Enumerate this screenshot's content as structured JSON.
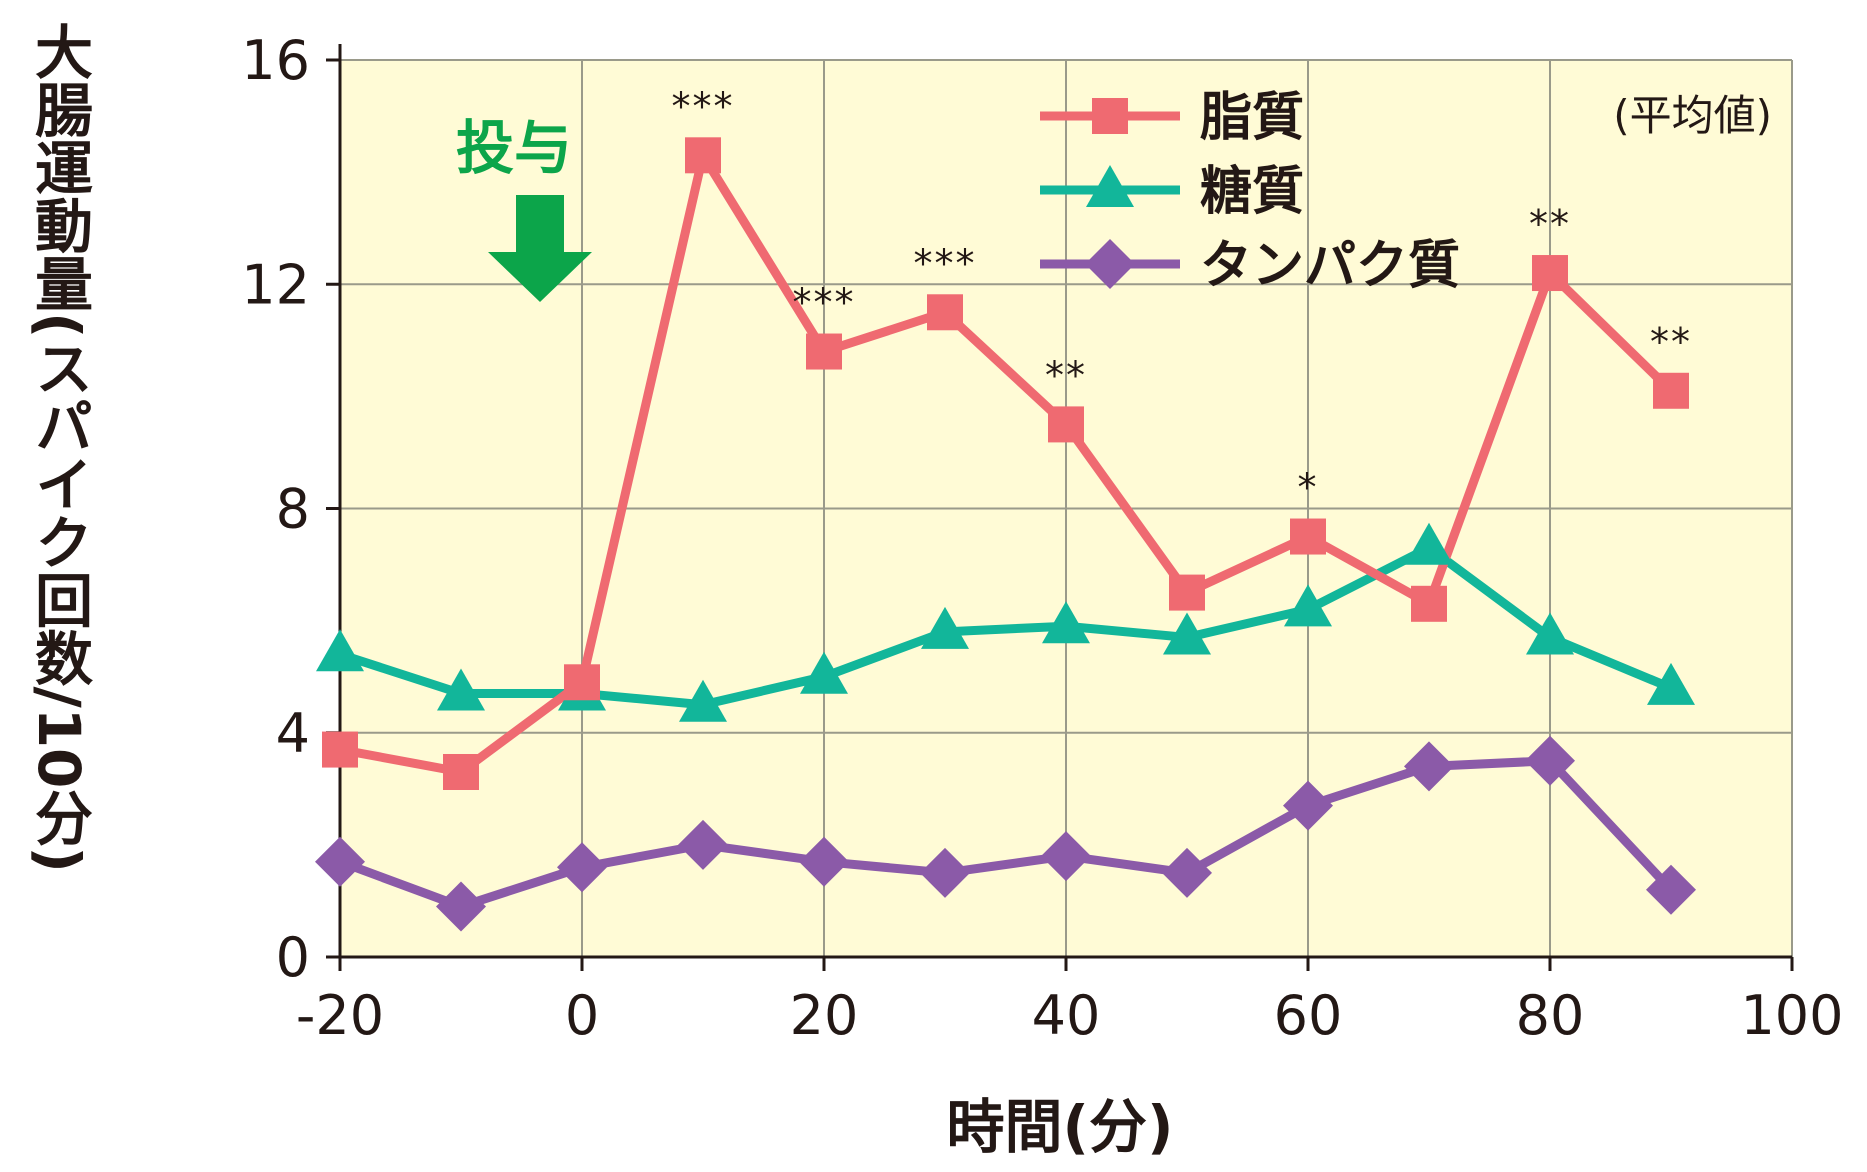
{
  "colors": {
    "plot_bg": "#fffbd6",
    "grid": "#9a9a8a",
    "axis": "#231815",
    "arrow": "#0ca54a"
  },
  "y_axis_title": "大腸運動量(スパイク回数/10分)",
  "x_axis_title": "時間(分)",
  "legend_note": "(平均値)",
  "dose_label": "投与",
  "chart_data": {
    "type": "line",
    "title": "",
    "xlabel": "時間(分)",
    "ylabel": "大腸運動量(スパイク回数/10分)",
    "xlim": [
      -20,
      100
    ],
    "ylim": [
      0,
      16
    ],
    "x_ticks": [
      -20,
      0,
      20,
      40,
      60,
      80,
      100
    ],
    "x_tick_labels": [
      "-20",
      "0",
      "20",
      "40",
      "60",
      "80",
      "100"
    ],
    "y_ticks": [
      0,
      4,
      8,
      12,
      16
    ],
    "y_tick_labels": [
      "0",
      "4",
      "8",
      "12",
      "16"
    ],
    "grid": true,
    "legend_position": "top-right",
    "note": "(平均値)",
    "dose_time": 0,
    "dose_label": "投与",
    "x": [
      -20,
      -10,
      0,
      10,
      20,
      30,
      40,
      50,
      60,
      70,
      80,
      90
    ],
    "series": [
      {
        "name": "脂質",
        "color": "#ef6a71",
        "marker": "square",
        "values": [
          3.7,
          3.3,
          4.9,
          14.3,
          10.8,
          11.5,
          9.5,
          6.5,
          7.5,
          6.3,
          12.2,
          10.1
        ]
      },
      {
        "name": "糖質",
        "color": "#12b69a",
        "marker": "triangle",
        "values": [
          5.4,
          4.7,
          4.7,
          4.5,
          5.0,
          5.8,
          5.9,
          5.7,
          6.2,
          7.3,
          5.7,
          4.8
        ]
      },
      {
        "name": "タンパク質",
        "color": "#8b5aa8",
        "marker": "diamond",
        "values": [
          1.7,
          0.9,
          1.6,
          2.0,
          1.7,
          1.5,
          1.8,
          1.5,
          2.7,
          3.4,
          3.5,
          1.2
        ]
      }
    ],
    "annotations": [
      {
        "x": 10,
        "y": 14.3,
        "text": "***"
      },
      {
        "x": 20,
        "y": 10.8,
        "text": "***"
      },
      {
        "x": 30,
        "y": 11.5,
        "text": "***"
      },
      {
        "x": 40,
        "y": 9.5,
        "text": "**"
      },
      {
        "x": 60,
        "y": 7.5,
        "text": "*"
      },
      {
        "x": 80,
        "y": 12.2,
        "text": "**"
      },
      {
        "x": 90,
        "y": 10.1,
        "text": "**"
      }
    ]
  }
}
